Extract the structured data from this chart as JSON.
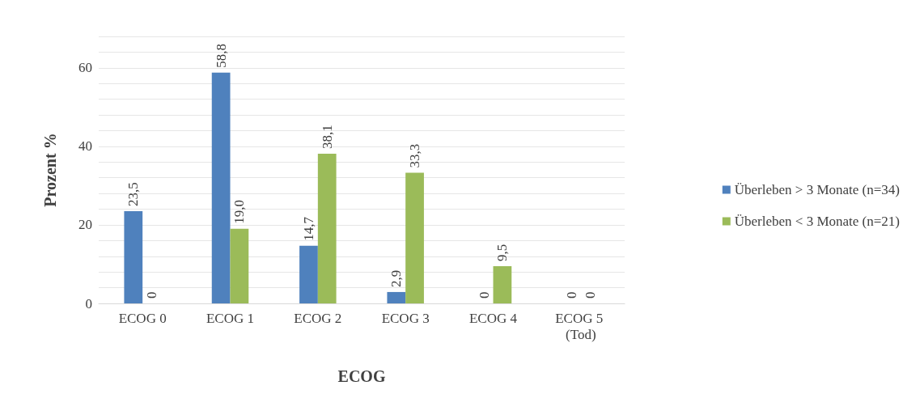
{
  "chart_data": {
    "type": "bar",
    "xlabel": "ECOG",
    "ylabel": "Prozent %",
    "categories": [
      "ECOG 0",
      "ECOG 1",
      "ECOG 2",
      "ECOG 3",
      "ECOG 4",
      "ECOG 5 (Tod)"
    ],
    "series": [
      {
        "name": "Überleben > 3 Monate (n=34)",
        "color": "#4f81bd",
        "values": [
          23.5,
          58.8,
          14.7,
          2.9,
          0,
          0
        ],
        "value_labels": [
          "23,5",
          "58,8",
          "14,7",
          "2,9",
          "0",
          "0"
        ]
      },
      {
        "name": "Überleben < 3 Monate (n=21)",
        "color": "#9bbb59",
        "values": [
          0,
          19.0,
          38.1,
          33.3,
          9.5,
          0
        ],
        "value_labels": [
          "0",
          "19,0",
          "38,1",
          "33,3",
          "9,5",
          "0"
        ]
      }
    ],
    "ylim": [
      0,
      68
    ],
    "yticks": [
      0,
      {
        "value": 4,
        "label": null
      },
      {
        "value": 8,
        "label": null
      },
      {
        "value": 12,
        "label": null
      },
      {
        "value": 16,
        "label": null
      },
      20,
      {
        "value": 24,
        "label": null
      },
      {
        "value": 28,
        "label": null
      },
      {
        "value": 32,
        "label": null
      },
      {
        "value": 36,
        "label": null
      },
      40,
      {
        "value": 44,
        "label": null
      },
      {
        "value": 48,
        "label": null
      },
      {
        "value": 52,
        "label": null
      },
      {
        "value": 56,
        "label": null
      },
      60,
      {
        "value": 64,
        "label": null
      },
      {
        "value": 68,
        "label": null
      }
    ],
    "grid": true,
    "legend": "right"
  }
}
